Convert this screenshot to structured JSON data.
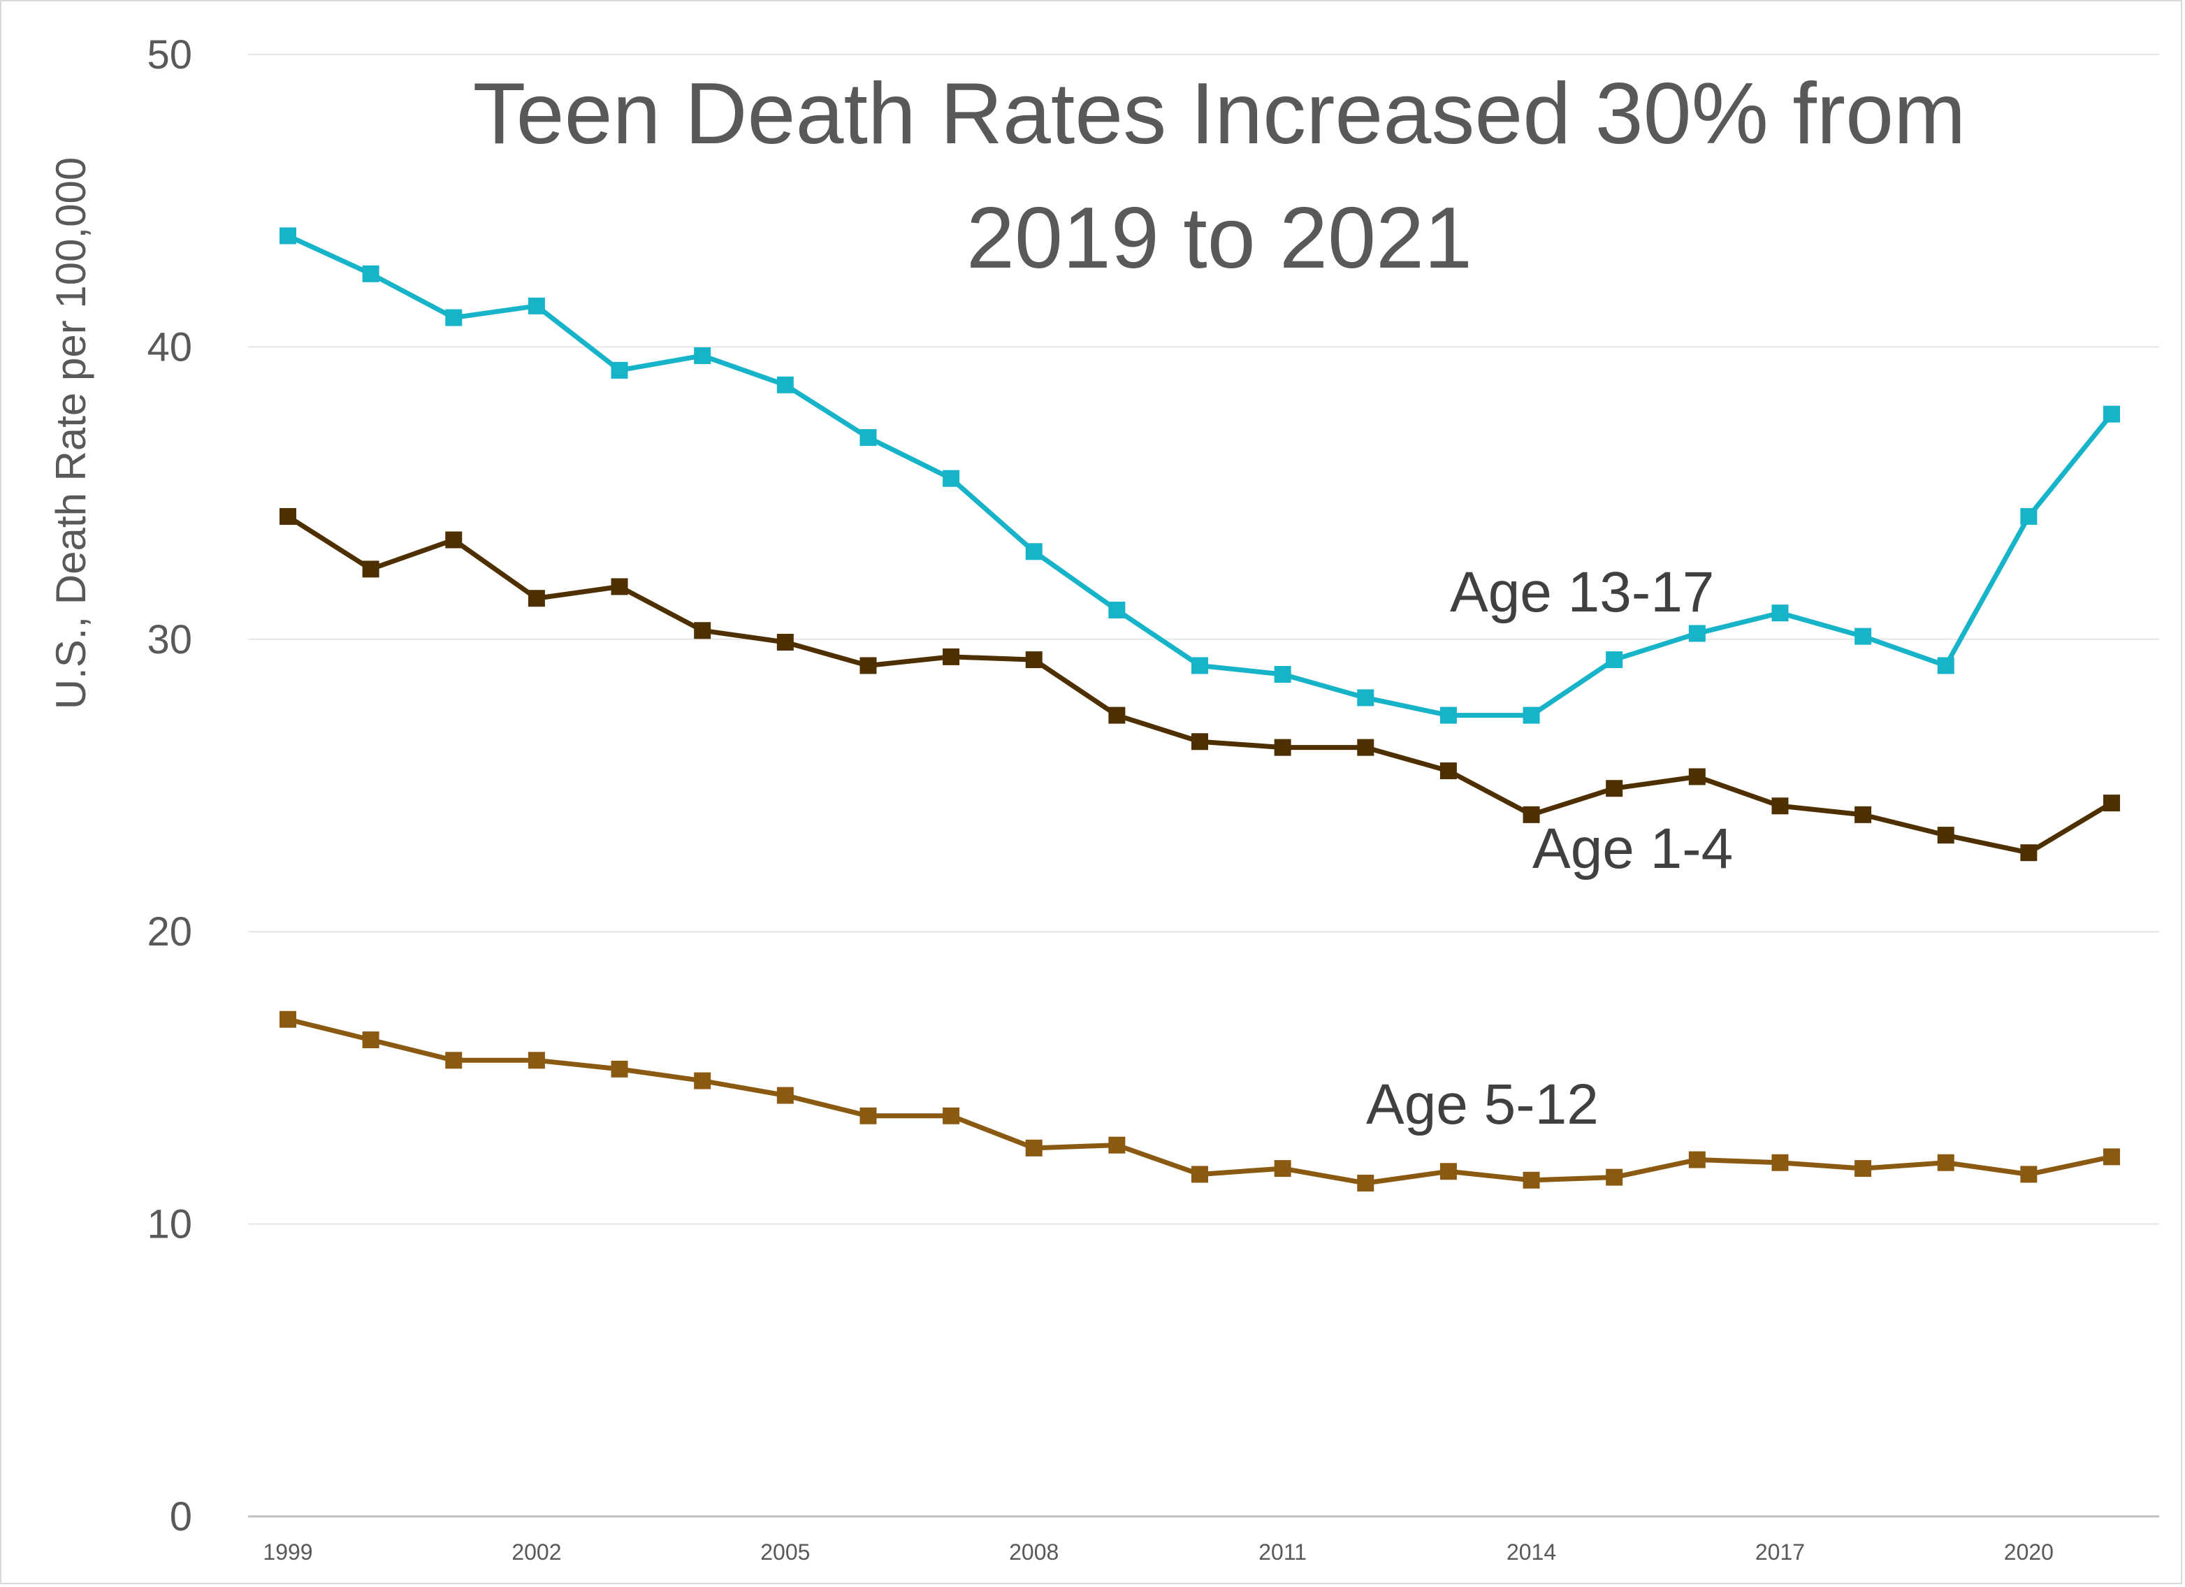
{
  "chart_data": {
    "type": "line",
    "title_lines": [
      "Teen Death Rates Increased 30% from",
      "2019 to 2021"
    ],
    "xlabel": "",
    "ylabel": "U.S., Death Rate per 100,000",
    "ylim": [
      0,
      50
    ],
    "yticks": [
      0,
      10,
      20,
      30,
      40,
      50
    ],
    "xticks": [
      1999,
      2002,
      2005,
      2008,
      2011,
      2014,
      2017,
      2020
    ],
    "grid": true,
    "x": [
      1999,
      2000,
      2001,
      2002,
      2003,
      2004,
      2005,
      2006,
      2007,
      2008,
      2009,
      2010,
      2011,
      2012,
      2013,
      2014,
      2015,
      2016,
      2017,
      2018,
      2019,
      2020,
      2021
    ],
    "series": [
      {
        "name": "Age 13-17",
        "color": "#17b3c9",
        "values": [
          43.8,
          42.5,
          41.0,
          41.4,
          39.2,
          39.7,
          38.7,
          36.9,
          35.5,
          33.0,
          31.0,
          29.1,
          28.8,
          28.0,
          27.4,
          27.4,
          29.3,
          30.2,
          30.9,
          30.1,
          29.1,
          34.2,
          37.7
        ]
      },
      {
        "name": "Age 1-4",
        "color": "#4e3000",
        "values": [
          34.2,
          32.4,
          33.4,
          31.4,
          31.8,
          30.3,
          29.9,
          29.1,
          29.4,
          29.3,
          27.4,
          26.5,
          26.3,
          26.3,
          25.5,
          24.0,
          24.9,
          25.3,
          24.3,
          24.0,
          23.3,
          22.7,
          24.4
        ]
      },
      {
        "name": "Age 5-12",
        "color": "#8b5a12",
        "values": [
          17.0,
          16.3,
          15.6,
          15.6,
          15.3,
          14.9,
          14.4,
          13.7,
          13.7,
          12.6,
          12.7,
          11.7,
          11.9,
          11.4,
          11.8,
          11.5,
          11.6,
          12.2,
          12.1,
          11.9,
          12.1,
          11.7,
          12.3
        ]
      }
    ]
  }
}
